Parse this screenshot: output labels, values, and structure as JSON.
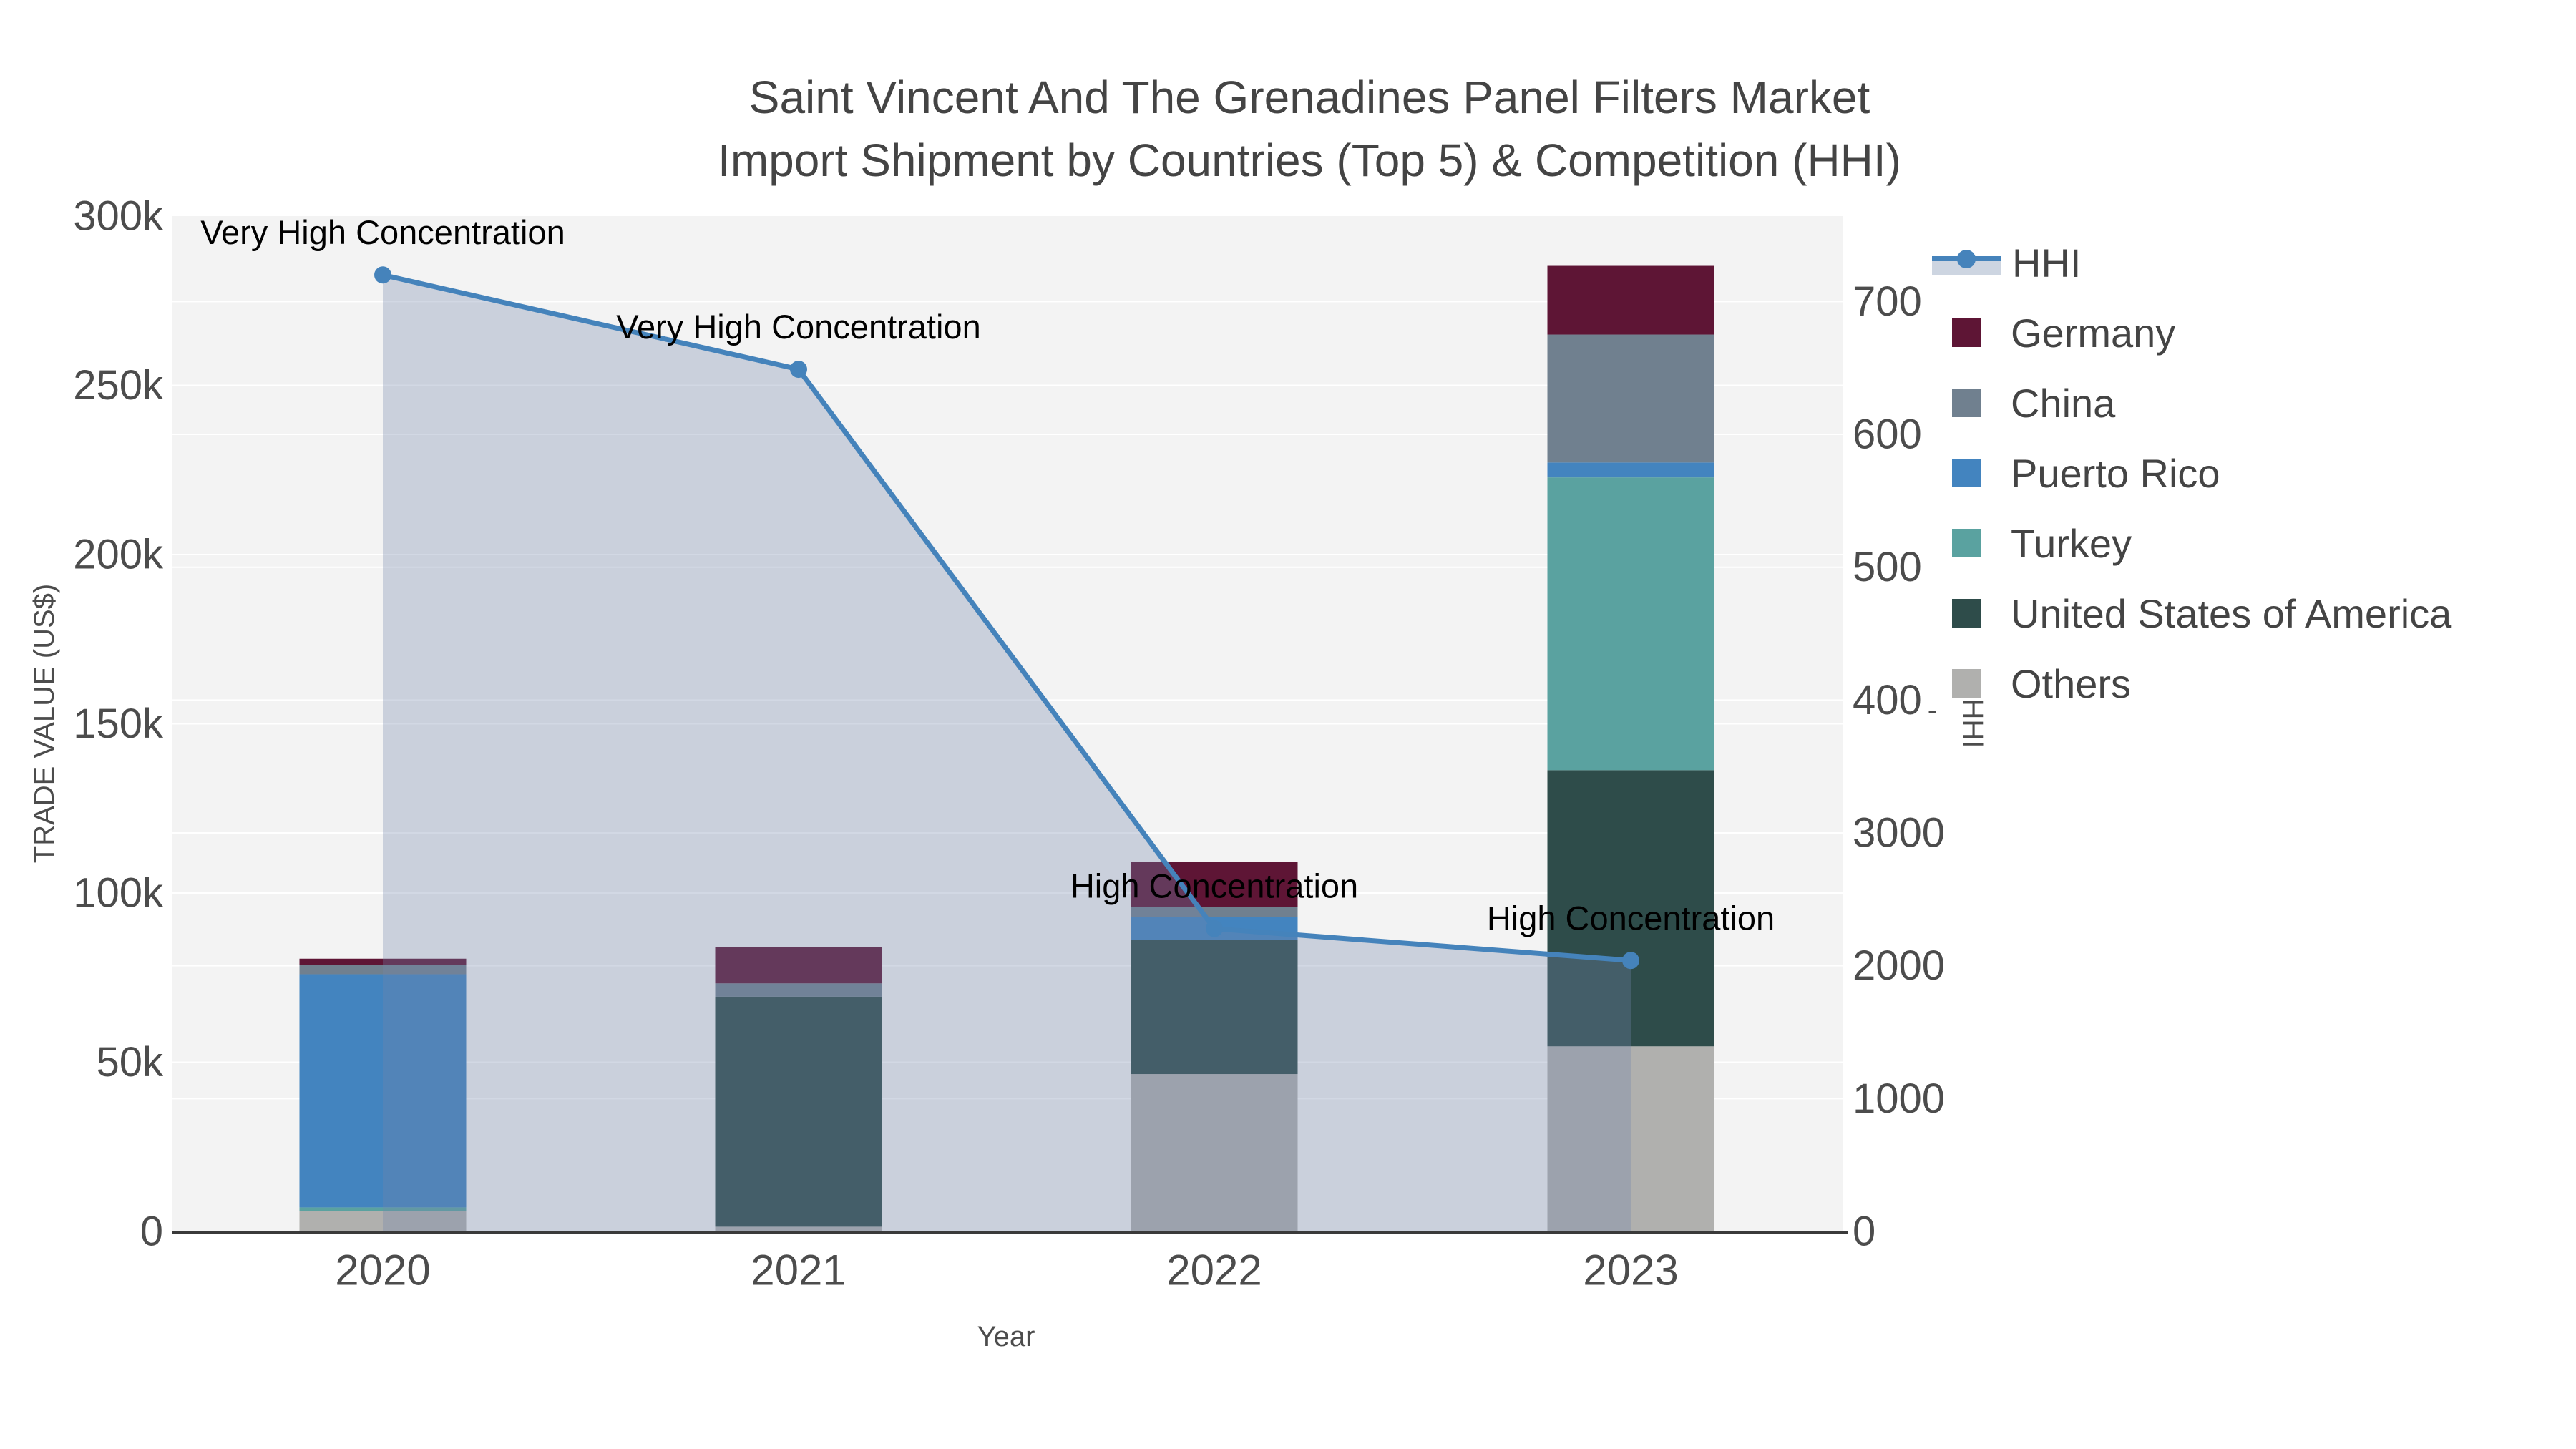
{
  "title": {
    "line1": "Saint Vincent And The Grenadines Panel Filters Market",
    "line2": "Import Shipment by Countries (Top 5) & Competition (HHI)"
  },
  "legend": {
    "items": [
      {
        "label": "HHI",
        "kind": "hhi",
        "color": "#4583bb",
        "band_color": "#cdd5e1"
      },
      {
        "label": "Germany",
        "kind": "bar",
        "color": "#5e1535"
      },
      {
        "label": "China",
        "kind": "bar",
        "color": "#70808f"
      },
      {
        "label": "Puerto Rico",
        "kind": "bar",
        "color": "#4384bf"
      },
      {
        "label": "Turkey",
        "kind": "bar",
        "color": "#5aa2a0"
      },
      {
        "label": "United States of America",
        "kind": "bar",
        "color": "#2e4c4a"
      },
      {
        "label": "Others",
        "kind": "bar",
        "color": "#b0b0ae"
      }
    ]
  },
  "axes": {
    "x": {
      "title": "Year",
      "tick_labels": [
        "2020",
        "2021",
        "2022",
        "2023"
      ]
    },
    "y_left": {
      "title": "TRADE VALUE (US$)",
      "range": [
        0,
        300000
      ],
      "ticks": [
        {
          "value": 0,
          "label": "0"
        },
        {
          "value": 50000,
          "label": "50k"
        },
        {
          "value": 100000,
          "label": "100k"
        },
        {
          "value": 150000,
          "label": "150k"
        },
        {
          "value": 200000,
          "label": "200k"
        },
        {
          "value": 250000,
          "label": "250k"
        },
        {
          "value": 300000,
          "label": "300k"
        }
      ]
    },
    "y_right": {
      "title": "HHI",
      "range": [
        0,
        7643
      ],
      "ticks": [
        {
          "value": 0,
          "label": "0"
        },
        {
          "value": 1000,
          "label": "1000"
        },
        {
          "value": 2000,
          "label": "2000"
        },
        {
          "value": 3000,
          "label": "3000"
        },
        {
          "value": 4000,
          "label": "400",
          "artifact": "-"
        },
        {
          "value": 5000,
          "label": "500"
        },
        {
          "value": 6000,
          "label": "600"
        },
        {
          "value": 7000,
          "label": "700"
        }
      ]
    }
  },
  "chart_data": {
    "type": "bar",
    "subtype": "stacked-bars-with-line",
    "categories": [
      "2020",
      "2021",
      "2022",
      "2023"
    ],
    "series": [
      {
        "name": "Others",
        "type": "bar",
        "color": "#b0b0ae",
        "values": [
          6100,
          1400,
          46500,
          54700
        ]
      },
      {
        "name": "United States of America",
        "type": "bar",
        "color": "#2e4c4a",
        "values": [
          0,
          68000,
          39700,
          81600
        ]
      },
      {
        "name": "Turkey",
        "type": "bar",
        "color": "#5aa2a0",
        "values": [
          1000,
          0,
          0,
          86500
        ]
      },
      {
        "name": "Puerto Rico",
        "type": "bar",
        "color": "#4384bf",
        "values": [
          68900,
          0,
          6700,
          4400
        ]
      },
      {
        "name": "China",
        "type": "bar",
        "color": "#70808f",
        "values": [
          2700,
          3900,
          3000,
          37800
        ]
      },
      {
        "name": "Germany",
        "type": "bar",
        "color": "#5e1535",
        "values": [
          1900,
          10800,
          13200,
          20300
        ]
      }
    ],
    "line_series": {
      "name": "HHI",
      "type": "line",
      "axis": "y_right",
      "color": "#4583bb",
      "fill_color": "rgba(115,135,171,0.32)",
      "values": [
        7200,
        6490,
        2280,
        2040
      ]
    },
    "annotations": [
      {
        "category": "2020",
        "text": "Very High Concentration"
      },
      {
        "category": "2021",
        "text": "Very High Concentration"
      },
      {
        "category": "2022",
        "text": "High Concentration"
      },
      {
        "category": "2023",
        "text": "High Concentration"
      }
    ],
    "title": "Saint Vincent And The Grenadines Panel Filters Market Import Shipment by Countries (Top 5) & Competition (HHI)",
    "xlabel": "Year",
    "ylabel": "TRADE VALUE (US$)",
    "ylabel_right": "HHI",
    "ylim_left": [
      0,
      300000
    ],
    "ylim_right": [
      0,
      7643
    ],
    "grid": true,
    "legend_position": "right"
  },
  "style": {
    "plot_bg": "#f3f3f3",
    "grid_color": "#ffffff",
    "axis_line_color": "#3a3a3a",
    "tick_color": "#4c4c4c",
    "annotation_color": "#000000"
  }
}
